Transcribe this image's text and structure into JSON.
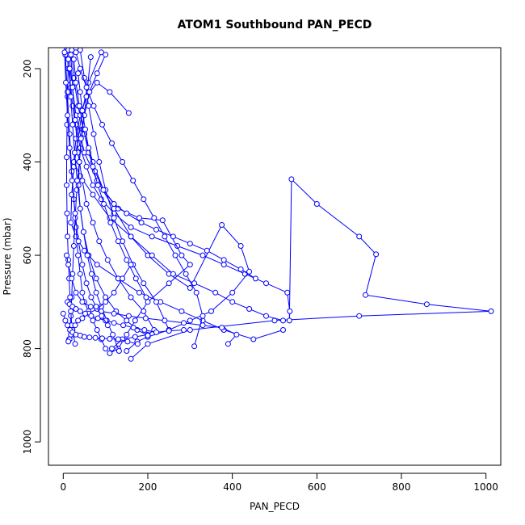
{
  "chart_data": {
    "type": "line",
    "title": "ATOM1 Southbound PAN_PECD",
    "xlabel": "PAN_PECD",
    "ylabel": "Pressure (mbar)",
    "xlim": [
      -35,
      1035
    ],
    "ylim": [
      1050,
      155
    ],
    "y_reversed": true,
    "xticks": [
      0,
      200,
      400,
      600,
      800,
      1000
    ],
    "yticks": [
      200,
      400,
      600,
      800,
      1000
    ],
    "grid": false,
    "legend": "none",
    "marker": "open-circle",
    "color": "#0000ff",
    "series": [
      {
        "x": [
          8,
          12,
          18,
          22,
          30,
          40,
          55,
          70,
          90,
          120,
          160,
          210,
          270,
          330,
          380,
          430,
          480,
          530,
          536,
          535,
          540,
          600,
          700,
          740,
          715,
          860,
          1012,
          700,
          500,
          300,
          200,
          160
        ],
        "y": [
          155,
          200,
          240,
          280,
          320,
          370,
          410,
          450,
          480,
          510,
          540,
          560,
          580,
          600,
          620,
          640,
          660,
          680,
          720,
          740,
          437,
          490,
          560,
          598,
          685,
          705,
          720,
          730,
          740,
          760,
          790,
          822
        ]
      },
      {
        "x": [
          12,
          20,
          30,
          50,
          80,
          120,
          160,
          200,
          250,
          300,
          375,
          420,
          440,
          400,
          350,
          300,
          250,
          200,
          175,
          150
        ],
        "y": [
          160,
          230,
          300,
          380,
          440,
          500,
          560,
          600,
          640,
          670,
          535,
          580,
          635,
          680,
          720,
          740,
          760,
          775,
          785,
          805
        ]
      },
      {
        "x": [
          20,
          25,
          35,
          50,
          70,
          95,
          130,
          180,
          235,
          280,
          300,
          250,
          200,
          170,
          150,
          130,
          110
        ],
        "y": [
          160,
          220,
          280,
          340,
          400,
          460,
          500,
          520,
          525,
          600,
          620,
          660,
          700,
          740,
          770,
          800,
          810
        ]
      },
      {
        "x": [
          90,
          60,
          45,
          35,
          25,
          20,
          18,
          30,
          50,
          80,
          130,
          180,
          230,
          280,
          330,
          380,
          450,
          520
        ],
        "y": [
          165,
          230,
          290,
          350,
          410,
          470,
          530,
          560,
          590,
          620,
          650,
          680,
          700,
          720,
          740,
          760,
          780,
          760
        ]
      },
      {
        "x": [
          155,
          110,
          80,
          55,
          40,
          30,
          25,
          40,
          70,
          110,
          160,
          210,
          260,
          310,
          360,
          400,
          440,
          480,
          520
        ],
        "y": [
          295,
          250,
          230,
          260,
          300,
          350,
          400,
          430,
          470,
          520,
          560,
          600,
          640,
          660,
          680,
          700,
          715,
          730,
          740
        ]
      },
      {
        "x": [
          5,
          10,
          15,
          20,
          25,
          30,
          35,
          40,
          45,
          50,
          60,
          70,
          80,
          90,
          100
        ],
        "y": [
          170,
          260,
          340,
          420,
          480,
          540,
          600,
          640,
          680,
          700,
          720,
          740,
          760,
          780,
          800
        ]
      },
      {
        "x": [
          18,
          22,
          28,
          35,
          45,
          55,
          70,
          85,
          105,
          130,
          160,
          190,
          215,
          200,
          170,
          140,
          115
        ],
        "y": [
          170,
          240,
          310,
          380,
          440,
          490,
          530,
          570,
          610,
          650,
          690,
          720,
          760,
          770,
          775,
          780,
          800
        ]
      },
      {
        "x": [
          40,
          50,
          60,
          72,
          85,
          100,
          120,
          140,
          165,
          190,
          220,
          250
        ],
        "y": [
          160,
          220,
          280,
          340,
          400,
          460,
          520,
          570,
          620,
          660,
          700,
          760
        ]
      },
      {
        "x": [
          65,
          55,
          45,
          38,
          32,
          28,
          25,
          22,
          20,
          18,
          16,
          14
        ],
        "y": [
          175,
          260,
          330,
          400,
          460,
          520,
          580,
          640,
          690,
          730,
          760,
          780
        ]
      },
      {
        "x": [
          25,
          30,
          38,
          48,
          60,
          75,
          95,
          120,
          150,
          185,
          220,
          260,
          300,
          340,
          380,
          420,
          455
        ],
        "y": [
          180,
          230,
          280,
          330,
          380,
          420,
          460,
          490,
          510,
          530,
          545,
          560,
          575,
          590,
          610,
          630,
          650
        ]
      },
      {
        "x": [
          12,
          10,
          9,
          8,
          8,
          9,
          10,
          12,
          14,
          16,
          18,
          20,
          24,
          28
        ],
        "y": [
          180,
          250,
          320,
          390,
          450,
          510,
          560,
          610,
          650,
          690,
          720,
          750,
          770,
          790
        ]
      },
      {
        "x": [
          30,
          40,
          55,
          72,
          92,
          115,
          140,
          165,
          190,
          215,
          240,
          265,
          290,
          315,
          330,
          310
        ],
        "y": [
          165,
          200,
          240,
          280,
          320,
          360,
          400,
          440,
          480,
          520,
          560,
          600,
          640,
          680,
          730,
          795
        ]
      },
      {
        "x": [
          100,
          80,
          62,
          50,
          42,
          38,
          36,
          40,
          48,
          60,
          78,
          100,
          125,
          150,
          175,
          200
        ],
        "y": [
          170,
          210,
          250,
          300,
          350,
          400,
          450,
          500,
          550,
          600,
          650,
          690,
          720,
          740,
          760,
          772
        ]
      },
      {
        "x": [
          15,
          18,
          22,
          27,
          33,
          40,
          48,
          57,
          67,
          78,
          90,
          103,
          117,
          132
        ],
        "y": [
          200,
          260,
          320,
          380,
          440,
          500,
          550,
          600,
          640,
          680,
          710,
          740,
          770,
          805
        ]
      },
      {
        "x": [
          35,
          40,
          45,
          52,
          60,
          70,
          82,
          96,
          112,
          130,
          150,
          172,
          196
        ],
        "y": [
          210,
          250,
          290,
          330,
          370,
          410,
          450,
          490,
          530,
          570,
          610,
          650,
          690
        ]
      },
      {
        "x": [
          8,
          12,
          20,
          30,
          45,
          65,
          90,
          120,
          155,
          195,
          240,
          285,
          330,
          375,
          410,
          390
        ],
        "y": [
          600,
          620,
          650,
          680,
          700,
          710,
          720,
          725,
          730,
          735,
          740,
          745,
          750,
          755,
          770,
          790
        ]
      },
      {
        "x": [
          160,
          140,
          120,
          100,
          80,
          60,
          45,
          35,
          28,
          22,
          18,
          15,
          12
        ],
        "y": [
          620,
          650,
          680,
          700,
          715,
          725,
          735,
          740,
          750,
          760,
          770,
          780,
          785
        ]
      },
      {
        "x": [
          10,
          15,
          22,
          30,
          40,
          52,
          66,
          82,
          100,
          120,
          142,
          166,
          192,
          220,
          250,
          285
        ],
        "y": [
          700,
          705,
          710,
          715,
          720,
          725,
          730,
          735,
          740,
          745,
          750,
          755,
          760,
          765,
          762,
          760
        ]
      },
      {
        "x": [
          0,
          5,
          10,
          16,
          22,
          30,
          40,
          50,
          62,
          76,
          92,
          110,
          130,
          152,
          176
        ],
        "y": [
          725,
          740,
          750,
          760,
          765,
          770,
          772,
          775,
          776,
          777,
          778,
          779,
          780,
          785,
          790
        ]
      },
      {
        "x": [
          3,
          6,
          10,
          15,
          21,
          28,
          36,
          45,
          55,
          66,
          78,
          91,
          105
        ],
        "y": [
          165,
          230,
          300,
          370,
          440,
          510,
          570,
          620,
          660,
          690,
          710,
          730,
          750
        ]
      }
    ]
  }
}
